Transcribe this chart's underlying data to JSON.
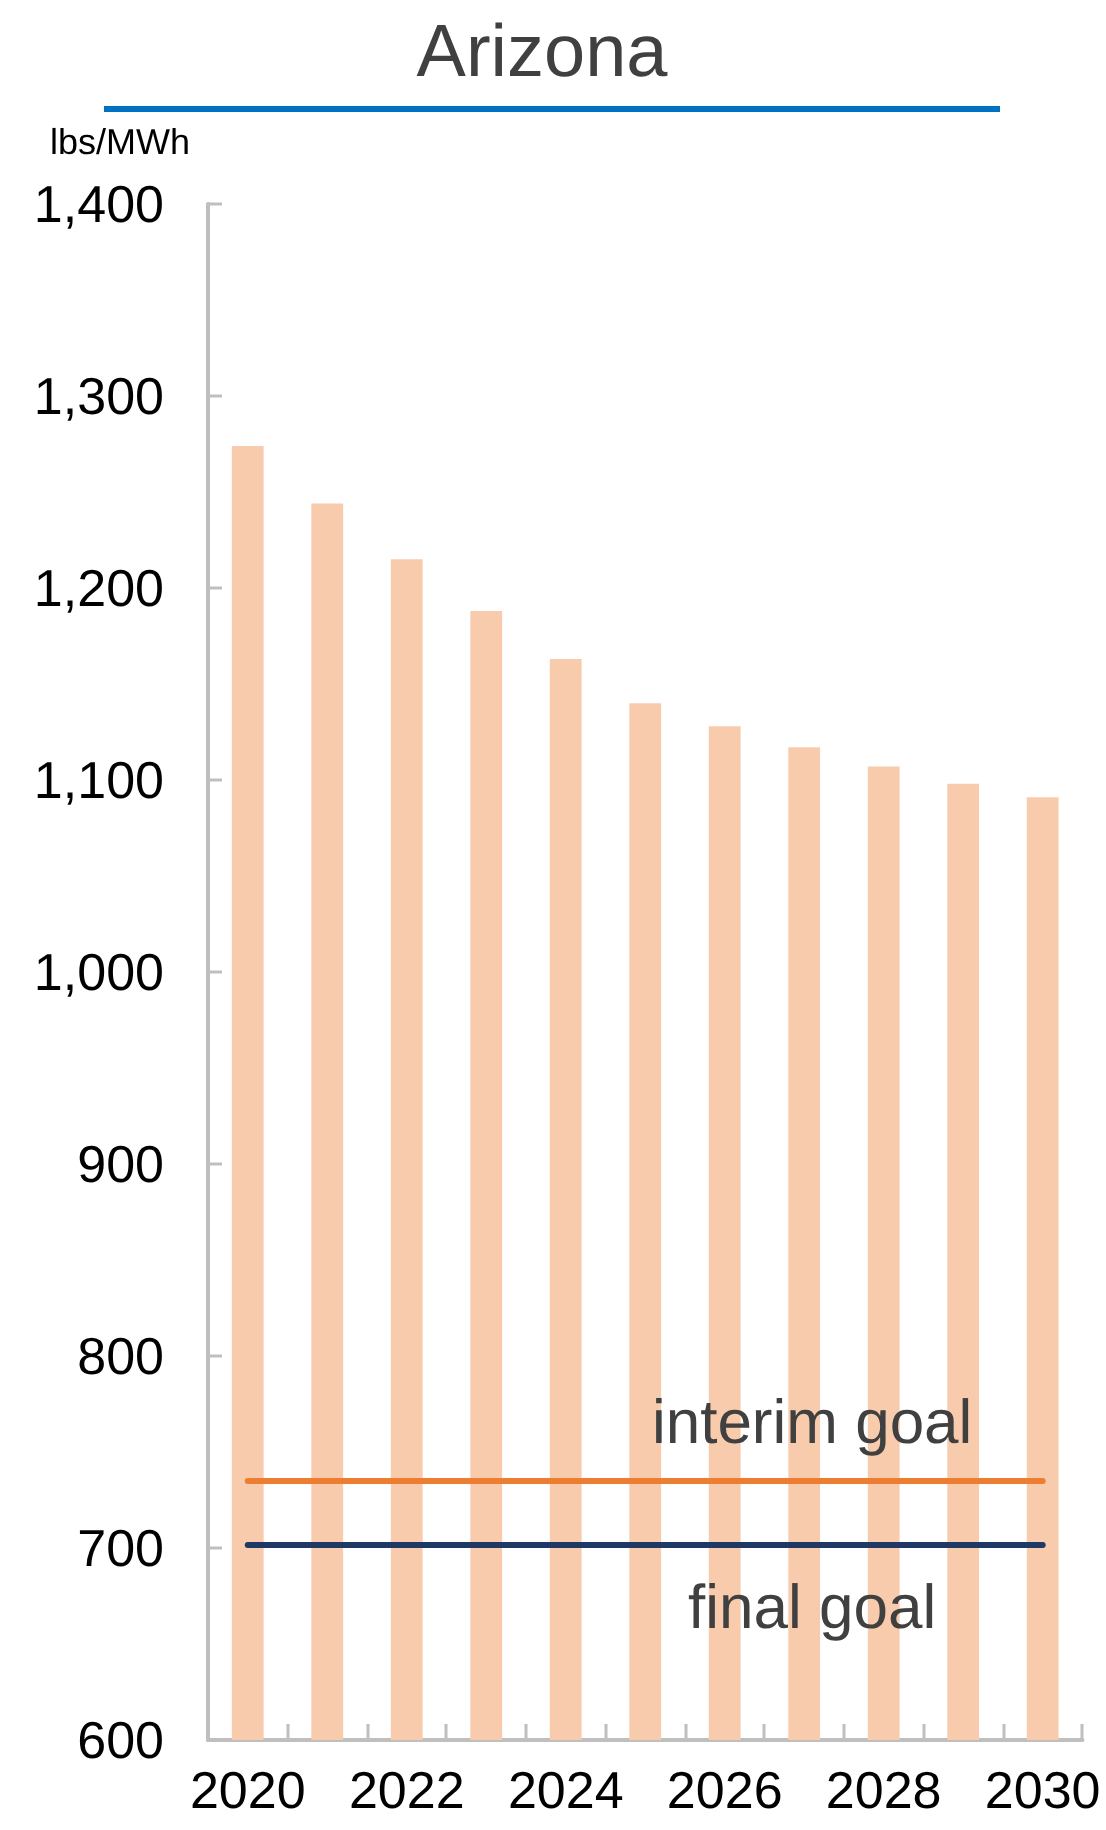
{
  "chart_data": {
    "type": "bar",
    "title": "Arizona",
    "ylabel": "lbs/MWh",
    "categories": [
      "2020",
      null,
      "2022",
      null,
      "2024",
      null,
      "2026",
      null,
      "2028",
      null,
      "2030"
    ],
    "values": [
      1274,
      1244,
      1215,
      1188,
      1163,
      1140,
      1128,
      1117,
      1107,
      1098,
      1091
    ],
    "color": "#f8cbad",
    "ylim": [
      600,
      1400
    ],
    "yticks": [
      600,
      700,
      800,
      900,
      {
        "value": 1000,
        "label": "1,000"
      },
      {
        "value": 1100,
        "label": "1,100"
      },
      {
        "value": 1200,
        "label": "1,200"
      },
      {
        "value": 1300,
        "label": "1,300"
      },
      {
        "value": 1400,
        "label": "1,400"
      }
    ],
    "grid": false,
    "ref_lines": [
      {
        "axis": "y",
        "value": 735,
        "label": "interim goal",
        "color": "#ed7d31"
      },
      {
        "axis": "y",
        "value": 702,
        "label": "final goal",
        "color": "#203864"
      }
    ]
  }
}
